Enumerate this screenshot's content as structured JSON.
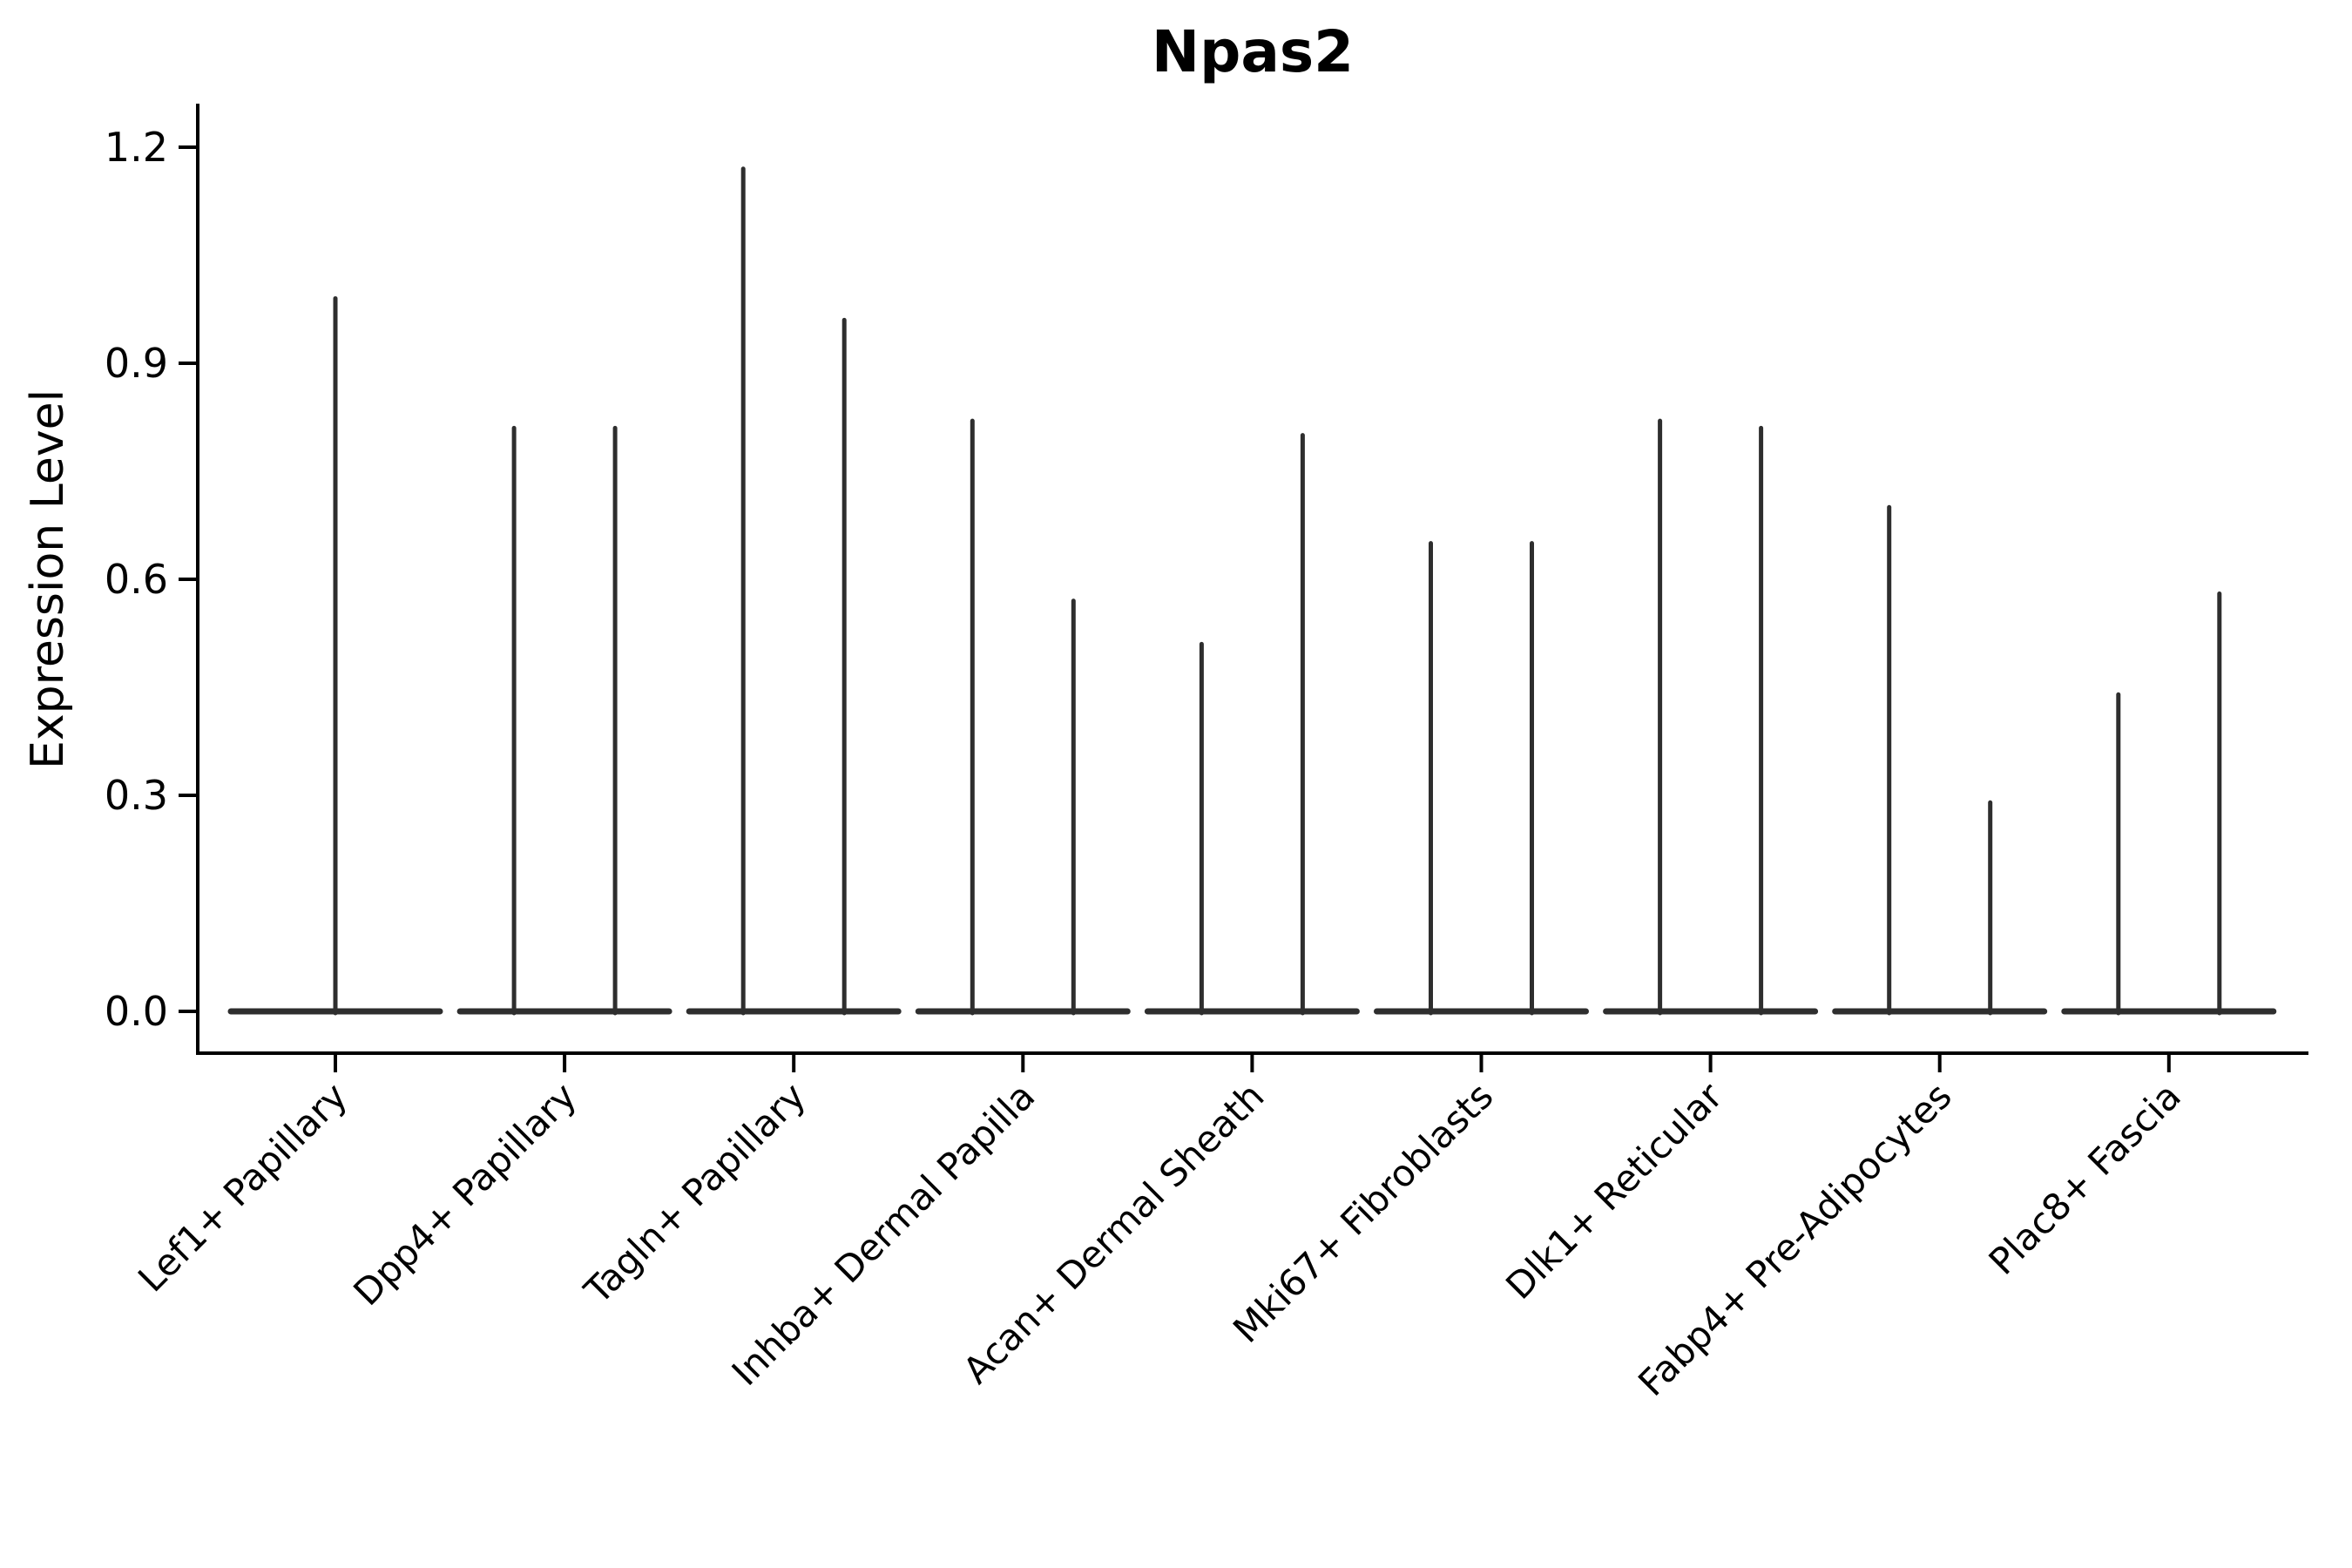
{
  "figure": {
    "title": "Npas2",
    "ylabel": "Expression Level"
  },
  "chart_data": {
    "type": "violin",
    "title": "Npas2",
    "xlabel": "",
    "ylabel": "Expression Level",
    "ylim": [
      -0.06,
      1.26
    ],
    "grid": false,
    "legend": "none",
    "y_ticks": [
      {
        "value": 0.0,
        "label": "0.0"
      },
      {
        "value": 0.3,
        "label": "0.3"
      },
      {
        "value": 0.6,
        "label": "0.6"
      },
      {
        "value": 0.9,
        "label": "0.9"
      },
      {
        "value": 1.2,
        "label": "1.2"
      }
    ],
    "categories": [
      "Lef1+ Papillary",
      "Dpp4+ Papillary",
      "Tagln+ Papillary",
      "Inhba+ Dermal Papilla",
      "Acan+ Dermal Sheath",
      "Mki67+ Fibroblasts",
      "Dlk1+ Reticular",
      "Fabp4+ Pre-Adipocytes",
      "Plac8+ Fascia"
    ],
    "series": [
      {
        "category": "Lef1+ Papillary",
        "spike_max_values": [
          0.99
        ]
      },
      {
        "category": "Dpp4+ Papillary",
        "spike_max_values": [
          0.81,
          0.81
        ]
      },
      {
        "category": "Tagln+ Papillary",
        "spike_max_values": [
          1.17,
          0.96
        ]
      },
      {
        "category": "Inhba+ Dermal Papilla",
        "spike_max_values": [
          0.82,
          0.57
        ]
      },
      {
        "category": "Acan+ Dermal Sheath",
        "spike_max_values": [
          0.51,
          0.8
        ]
      },
      {
        "category": "Mki67+ Fibroblasts",
        "spike_max_values": [
          0.65,
          0.65
        ]
      },
      {
        "category": "Dlk1+ Reticular",
        "spike_max_values": [
          0.82,
          0.81
        ]
      },
      {
        "category": "Fabp4+ Pre-Adipocytes",
        "spike_max_values": [
          0.7,
          0.29
        ]
      },
      {
        "category": "Plac8+ Fascia",
        "spike_max_values": [
          0.44,
          0.58
        ]
      }
    ],
    "colors": {
      "violin_line": "#2e2e2e",
      "axis": "#000000",
      "background": "#ffffff"
    }
  }
}
